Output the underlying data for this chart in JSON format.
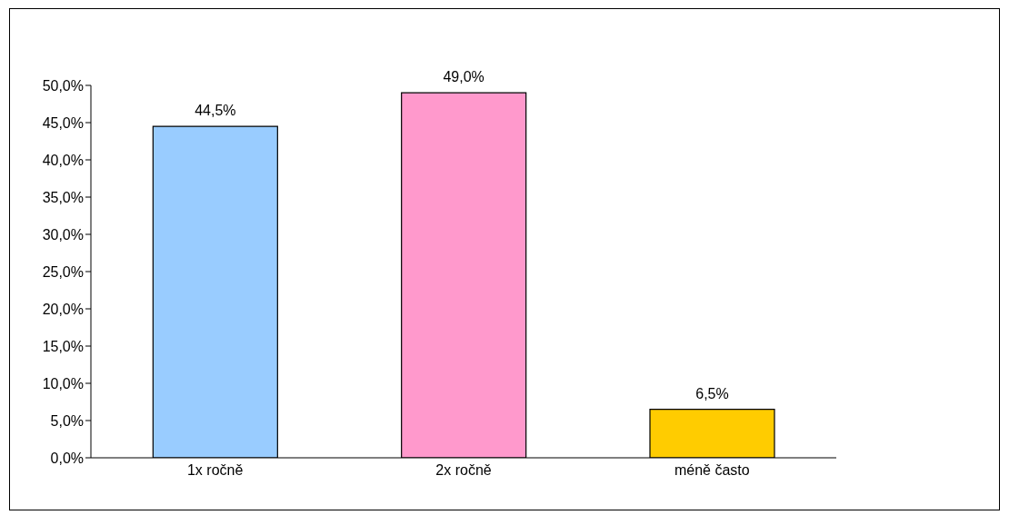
{
  "chart_data": {
    "type": "bar",
    "categories": [
      "1x ročně",
      "2x ročně",
      "méně často"
    ],
    "values": [
      44.5,
      49.0,
      6.5
    ],
    "colors": [
      "#99ccff",
      "#ff99cc",
      "#ffcc00"
    ],
    "value_labels": [
      "44,5%",
      "49,0%",
      "6,5%"
    ],
    "ylim": [
      0,
      50
    ],
    "yticks": [
      {
        "value": 0,
        "label": "0,0%"
      },
      {
        "value": 5,
        "label": "5,0%"
      },
      {
        "value": 10,
        "label": "10,0%"
      },
      {
        "value": 15,
        "label": "15,0%"
      },
      {
        "value": 20,
        "label": "20,0%"
      },
      {
        "value": 25,
        "label": "25,0%"
      },
      {
        "value": 30,
        "label": "30,0%"
      },
      {
        "value": 35,
        "label": "35,0%"
      },
      {
        "value": 40,
        "label": "40,0%"
      },
      {
        "value": 45,
        "label": "45,0%"
      },
      {
        "value": 50,
        "label": "50,0%"
      }
    ],
    "grid": false,
    "legend": false
  }
}
